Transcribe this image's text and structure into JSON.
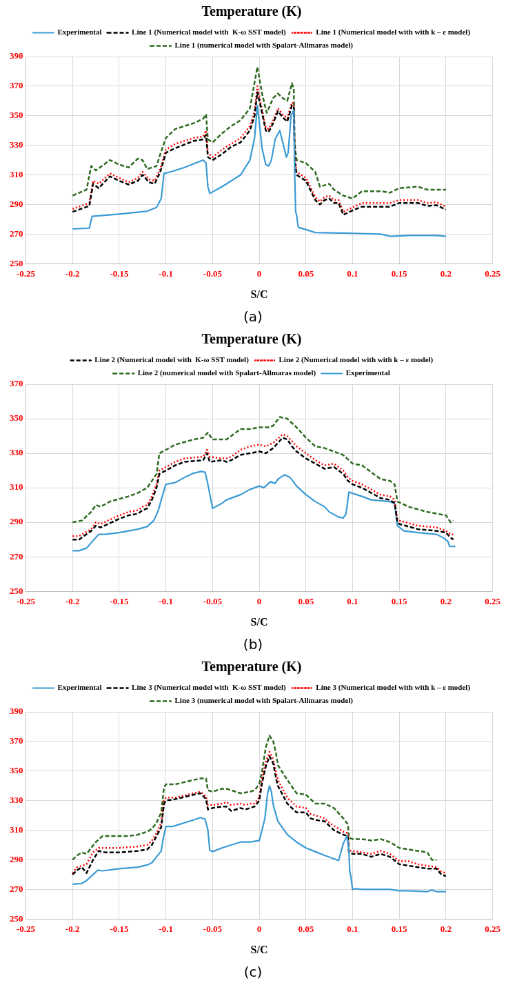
{
  "chart_data": [
    {
      "type": "line",
      "title": "Temperature (K)",
      "xlabel": "S/C",
      "annotations": [
        "(a)"
      ],
      "xlim": [
        -0.25,
        0.25
      ],
      "xticks": [
        -0.25,
        -0.2,
        -0.15,
        -0.1,
        -0.05,
        0,
        0.05,
        0.1,
        0.15,
        0.2,
        0.25
      ],
      "ylim": [
        250,
        390
      ],
      "yticks": [
        250,
        270,
        290,
        310,
        330,
        350,
        370,
        390
      ],
      "grid": true,
      "legend": "top",
      "marker": "none",
      "series": [
        {
          "name": "Experimental",
          "color": "#3a9bd5",
          "line_style": "solid",
          "x": [
            -0.2,
            -0.182,
            -0.179,
            -0.15,
            -0.12,
            -0.11,
            -0.105,
            -0.102,
            -0.095,
            -0.08,
            -0.06,
            -0.057,
            -0.055,
            -0.053,
            -0.04,
            -0.02,
            -0.01,
            -0.005,
            -0.002,
            0.001,
            0.003,
            0.007,
            0.01,
            0.013,
            0.017,
            0.022,
            0.026,
            0.029,
            0.031,
            0.034,
            0.037,
            0.038,
            0.039,
            0.04,
            0.041,
            0.042,
            0.05,
            0.06,
            0.1,
            0.13,
            0.14,
            0.16,
            0.19,
            0.2
          ],
          "values": [
            273.5,
            274,
            282,
            283.5,
            285.5,
            288,
            294,
            311,
            312,
            315,
            320,
            318,
            302,
            297.5,
            302,
            310,
            320,
            335,
            357,
            340,
            328,
            317,
            316,
            320,
            334,
            340,
            330,
            322,
            325,
            350,
            354,
            310,
            285,
            283,
            278,
            274.5,
            273,
            271,
            270.5,
            270,
            268.5,
            269,
            269,
            268.5
          ]
        },
        {
          "name": "Line 1 (Numerical model with  K-ω SST model)",
          "color": "#000000",
          "line_style": "dashed",
          "x": [
            -0.2,
            -0.182,
            -0.178,
            -0.172,
            -0.16,
            -0.15,
            -0.14,
            -0.13,
            -0.125,
            -0.118,
            -0.112,
            -0.106,
            -0.1,
            -0.09,
            -0.07,
            -0.06,
            -0.057,
            -0.055,
            -0.05,
            -0.04,
            -0.03,
            -0.02,
            -0.01,
            -0.005,
            -0.002,
            0.002,
            0.007,
            0.01,
            0.015,
            0.02,
            0.025,
            0.03,
            0.035,
            0.037,
            0.038,
            0.04,
            0.05,
            0.06,
            0.065,
            0.07,
            0.075,
            0.08,
            0.085,
            0.09,
            0.1,
            0.11,
            0.14,
            0.15,
            0.17,
            0.18,
            0.19,
            0.2
          ],
          "values": [
            285,
            289,
            304,
            301,
            309,
            306,
            303.5,
            306,
            310,
            305,
            304,
            312,
            325,
            328,
            333,
            334,
            337,
            322,
            320,
            324,
            329,
            332,
            340,
            350,
            366,
            355,
            340,
            339,
            345,
            353,
            349,
            346,
            357,
            356,
            320,
            310,
            306,
            293,
            290,
            293,
            294,
            291,
            291,
            283,
            286,
            288.5,
            288.5,
            291,
            291,
            289,
            289.5,
            286.5
          ]
        },
        {
          "name": "Line 1 (Numerical model with with k – ε model)",
          "color": "#ff0000",
          "line_style": "dotted",
          "x": [
            -0.2,
            -0.182,
            -0.178,
            -0.172,
            -0.16,
            -0.15,
            -0.14,
            -0.13,
            -0.125,
            -0.118,
            -0.112,
            -0.106,
            -0.1,
            -0.09,
            -0.07,
            -0.06,
            -0.057,
            -0.055,
            -0.05,
            -0.04,
            -0.03,
            -0.02,
            -0.01,
            -0.005,
            -0.002,
            0.002,
            0.007,
            0.01,
            0.015,
            0.02,
            0.025,
            0.03,
            0.035,
            0.037,
            0.038,
            0.04,
            0.05,
            0.06,
            0.065,
            0.07,
            0.075,
            0.08,
            0.085,
            0.09,
            0.1,
            0.11,
            0.14,
            0.15,
            0.17,
            0.18,
            0.19,
            0.2
          ],
          "values": [
            287,
            291,
            306,
            304,
            311,
            308,
            305,
            308,
            312,
            307,
            306,
            314,
            327,
            331,
            335,
            336,
            340,
            325,
            322,
            327,
            331,
            335,
            343,
            353,
            370,
            357,
            342,
            341,
            347,
            355,
            351,
            348,
            359,
            358,
            323,
            312,
            308,
            295,
            292,
            295,
            296,
            293,
            293,
            285,
            288,
            291,
            291,
            293,
            293,
            291,
            291.5,
            288.5
          ]
        },
        {
          "name": "Line 1 (numerical model with Spalart-Allmaras model)",
          "color": "#2d6a1f",
          "line_style": "dashed",
          "x": [
            -0.2,
            -0.185,
            -0.18,
            -0.175,
            -0.16,
            -0.15,
            -0.14,
            -0.13,
            -0.125,
            -0.12,
            -0.11,
            -0.106,
            -0.1,
            -0.09,
            -0.07,
            -0.06,
            -0.057,
            -0.055,
            -0.05,
            -0.04,
            -0.03,
            -0.02,
            -0.01,
            -0.002,
            0.003,
            0.008,
            0.015,
            0.02,
            0.025,
            0.03,
            0.035,
            0.037,
            0.038,
            0.04,
            0.05,
            0.06,
            0.065,
            0.075,
            0.08,
            0.09,
            0.1,
            0.11,
            0.13,
            0.14,
            0.15,
            0.17,
            0.18,
            0.2
          ],
          "values": [
            296,
            300,
            316,
            313,
            320,
            317,
            315,
            321,
            320,
            314,
            316,
            324,
            335,
            341,
            345,
            348,
            351,
            334,
            332,
            338,
            343,
            347,
            355,
            383,
            365,
            352,
            362,
            365,
            362,
            360,
            372,
            368,
            330,
            320,
            318,
            312,
            302,
            304,
            300,
            296,
            294,
            299,
            299,
            298,
            301,
            302,
            300,
            300
          ]
        }
      ]
    },
    {
      "type": "line",
      "title": "Temperature (K)",
      "xlabel": "S/C",
      "annotations": [
        "(b)"
      ],
      "xlim": [
        -0.25,
        0.25
      ],
      "xticks": [
        -0.25,
        -0.2,
        -0.15,
        -0.1,
        -0.05,
        0,
        0.05,
        0.1,
        0.15,
        0.2,
        0.25
      ],
      "ylim": [
        250,
        370
      ],
      "yticks": [
        250,
        270,
        290,
        310,
        330,
        350,
        370
      ],
      "grid": true,
      "legend": "top",
      "marker": "none",
      "series": [
        {
          "name": "Line 2 (Numerical model with  K-ω SST model)",
          "color": "#000000",
          "line_style": "dashed",
          "x": [
            -0.2,
            -0.193,
            -0.18,
            -0.175,
            -0.17,
            -0.15,
            -0.14,
            -0.13,
            -0.125,
            -0.12,
            -0.115,
            -0.11,
            -0.107,
            -0.1,
            -0.09,
            -0.08,
            -0.06,
            -0.056,
            -0.053,
            -0.04,
            -0.035,
            -0.03,
            -0.02,
            -0.01,
            0,
            0.007,
            0.015,
            0.025,
            0.03,
            0.035,
            0.04,
            0.05,
            0.06,
            0.07,
            0.08,
            0.09,
            0.095,
            0.1,
            0.11,
            0.12,
            0.13,
            0.14,
            0.145,
            0.148,
            0.15,
            0.17,
            0.19,
            0.2,
            0.205,
            0.208
          ],
          "values": [
            280,
            280,
            285,
            288,
            287,
            292,
            294,
            295,
            297,
            298,
            303,
            310,
            318,
            320,
            323,
            325,
            326,
            330,
            325,
            326,
            325,
            326,
            329,
            330,
            331,
            330,
            333,
            339,
            338,
            334,
            331,
            327,
            324,
            321,
            322,
            318,
            314,
            312,
            310,
            307,
            304,
            303,
            301,
            290,
            289,
            286,
            285,
            284,
            281,
            280
          ]
        },
        {
          "name": "Line 2 (Numerical model with with k – ε model)",
          "color": "#ff0000",
          "line_style": "dotted",
          "x": [
            -0.2,
            -0.193,
            -0.18,
            -0.175,
            -0.17,
            -0.15,
            -0.14,
            -0.13,
            -0.125,
            -0.12,
            -0.115,
            -0.11,
            -0.107,
            -0.1,
            -0.09,
            -0.08,
            -0.06,
            -0.056,
            -0.053,
            -0.04,
            -0.035,
            -0.03,
            -0.02,
            -0.01,
            0,
            0.007,
            0.015,
            0.025,
            0.03,
            0.035,
            0.04,
            0.05,
            0.06,
            0.07,
            0.08,
            0.09,
            0.095,
            0.1,
            0.11,
            0.12,
            0.13,
            0.14,
            0.145,
            0.148,
            0.15,
            0.17,
            0.19,
            0.2,
            0.205,
            0.208
          ],
          "values": [
            282,
            282,
            286,
            290,
            289,
            294,
            296,
            297,
            299,
            300,
            305,
            312,
            320,
            322,
            325,
            327,
            328,
            332,
            328,
            327,
            327,
            328,
            332,
            334,
            335,
            334,
            336,
            341,
            340,
            337,
            334,
            330,
            326,
            323,
            324,
            320,
            316,
            314,
            312,
            309,
            306,
            305,
            303,
            292,
            291,
            288,
            287,
            285,
            283,
            283
          ]
        },
        {
          "name": "Line 2 (numerical model with Spalart-Allmaras model)",
          "color": "#2d6a1f",
          "line_style": "dashed",
          "x": [
            -0.2,
            -0.19,
            -0.18,
            -0.175,
            -0.17,
            -0.16,
            -0.14,
            -0.13,
            -0.12,
            -0.115,
            -0.11,
            -0.107,
            -0.1,
            -0.09,
            -0.07,
            -0.06,
            -0.055,
            -0.05,
            -0.04,
            -0.035,
            -0.02,
            -0.01,
            0,
            0.01,
            0.015,
            0.022,
            0.03,
            0.04,
            0.05,
            0.06,
            0.07,
            0.09,
            0.1,
            0.11,
            0.12,
            0.13,
            0.14,
            0.145,
            0.148,
            0.16,
            0.18,
            0.2,
            0.205,
            0.208
          ],
          "values": [
            290,
            291,
            296,
            300,
            299,
            302,
            305,
            307,
            310,
            314,
            318,
            330,
            332,
            335,
            338,
            339,
            342,
            338,
            338,
            338,
            344,
            344,
            345,
            345,
            346,
            351,
            350,
            345,
            339,
            334,
            333,
            329,
            324,
            323,
            319,
            315,
            314,
            312,
            302,
            299,
            296,
            294,
            290,
            291
          ]
        },
        {
          "name": "Experimental",
          "color": "#3a9bd5",
          "line_style": "solid",
          "x": [
            -0.2,
            -0.193,
            -0.185,
            -0.177,
            -0.172,
            -0.165,
            -0.15,
            -0.13,
            -0.12,
            -0.113,
            -0.108,
            -0.105,
            -0.1,
            -0.09,
            -0.08,
            -0.07,
            -0.062,
            -0.058,
            -0.055,
            -0.05,
            -0.045,
            -0.04,
            -0.035,
            -0.02,
            -0.01,
            0,
            0.005,
            0.012,
            0.017,
            0.02,
            0.027,
            0.033,
            0.04,
            0.05,
            0.06,
            0.07,
            0.075,
            0.085,
            0.09,
            0.093,
            0.096,
            0.11,
            0.12,
            0.14,
            0.145,
            0.148,
            0.155,
            0.17,
            0.19,
            0.197,
            0.202,
            0.204,
            0.21
          ],
          "values": [
            273.5,
            273.5,
            275,
            280,
            283,
            283,
            284,
            286,
            287.5,
            291,
            297,
            303,
            312,
            313,
            316,
            318.5,
            319.5,
            319,
            312,
            298,
            299.5,
            301,
            303,
            306,
            309,
            311,
            310,
            313.5,
            312.5,
            315,
            317.5,
            316,
            311,
            306,
            302,
            299,
            296,
            293,
            292.5,
            295,
            307.5,
            305,
            303,
            302,
            301,
            288,
            285,
            284,
            283,
            281,
            279,
            276,
            276
          ]
        }
      ]
    },
    {
      "type": "line",
      "title": "Temperature (K)",
      "xlabel": "S/C",
      "annotations": [
        "(c)"
      ],
      "xlim": [
        -0.25,
        0.25
      ],
      "xticks": [
        -0.25,
        -0.2,
        -0.15,
        -0.1,
        -0.05,
        0,
        0.05,
        0.1,
        0.15,
        0.2,
        0.25
      ],
      "ylim": [
        250,
        390
      ],
      "yticks": [
        250,
        270,
        290,
        310,
        330,
        350,
        370,
        390
      ],
      "grid": true,
      "legend": "top",
      "marker": "none",
      "series": [
        {
          "name": "Experimental",
          "color": "#3a9bd5",
          "line_style": "solid",
          "x": [
            -0.2,
            -0.19,
            -0.185,
            -0.178,
            -0.173,
            -0.168,
            -0.15,
            -0.13,
            -0.12,
            -0.115,
            -0.11,
            -0.105,
            -0.103,
            -0.1,
            -0.093,
            -0.08,
            -0.07,
            -0.063,
            -0.058,
            -0.055,
            -0.053,
            -0.05,
            -0.04,
            -0.03,
            -0.02,
            -0.01,
            0,
            0.003,
            0.006,
            0.009,
            0.011,
            0.013,
            0.015,
            0.02,
            0.03,
            0.04,
            0.05,
            0.06,
            0.07,
            0.085,
            0.09,
            0.094,
            0.096,
            0.097,
            0.098,
            0.1,
            0.103,
            0.11,
            0.14,
            0.15,
            0.16,
            0.18,
            0.185,
            0.19,
            0.2
          ],
          "values": [
            273.5,
            274,
            276,
            280,
            283,
            282.5,
            284,
            285,
            286.5,
            288,
            292,
            296,
            304,
            312.5,
            312.5,
            315,
            317,
            318.5,
            317.5,
            310,
            296.5,
            295.5,
            298,
            300,
            302,
            302,
            303,
            310,
            318,
            335,
            340,
            336,
            327,
            316,
            307,
            302,
            298,
            295.5,
            293,
            289.5,
            301,
            306,
            296,
            282,
            279,
            270,
            270.5,
            270,
            270,
            269,
            269,
            268.5,
            269.5,
            268.5,
            268.5
          ]
        },
        {
          "name": "Line 3 (Numerical model with  K-ω SST model)",
          "color": "#000000",
          "line_style": "dashed",
          "x": [
            -0.2,
            -0.195,
            -0.19,
            -0.185,
            -0.178,
            -0.172,
            -0.165,
            -0.15,
            -0.13,
            -0.12,
            -0.115,
            -0.11,
            -0.105,
            -0.102,
            -0.1,
            -0.09,
            -0.07,
            -0.063,
            -0.057,
            -0.055,
            -0.05,
            -0.04,
            -0.035,
            -0.03,
            -0.02,
            -0.015,
            -0.01,
            -0.005,
            0,
            0.003,
            0.007,
            0.011,
            0.015,
            0.018,
            0.02,
            0.03,
            0.04,
            0.05,
            0.055,
            0.06,
            0.07,
            0.075,
            0.08,
            0.09,
            0.095,
            0.096,
            0.1,
            0.11,
            0.12,
            0.13,
            0.14,
            0.15,
            0.16,
            0.17,
            0.18,
            0.19,
            0.195,
            0.2
          ],
          "values": [
            280,
            283,
            285,
            281,
            290,
            296,
            295,
            295,
            296,
            297,
            300,
            306,
            312,
            328,
            330,
            331,
            334,
            335,
            331,
            324,
            325,
            326,
            326,
            323,
            325,
            324,
            325,
            326,
            330,
            342,
            353,
            360,
            355,
            345,
            340,
            328,
            322,
            322,
            318,
            317,
            316,
            313,
            310,
            307,
            306,
            295,
            294,
            294,
            292,
            294,
            292,
            287,
            286,
            285,
            284,
            284,
            280,
            279
          ]
        },
        {
          "name": "Line 3 (Numerical model with with k – ε model)",
          "color": "#ff0000",
          "line_style": "dotted",
          "x": [
            -0.2,
            -0.195,
            -0.19,
            -0.185,
            -0.178,
            -0.172,
            -0.165,
            -0.15,
            -0.13,
            -0.12,
            -0.115,
            -0.11,
            -0.105,
            -0.102,
            -0.1,
            -0.09,
            -0.07,
            -0.063,
            -0.057,
            -0.055,
            -0.05,
            -0.04,
            -0.035,
            -0.03,
            -0.02,
            -0.015,
            -0.01,
            -0.005,
            0,
            0.003,
            0.007,
            0.011,
            0.015,
            0.018,
            0.02,
            0.03,
            0.04,
            0.05,
            0.055,
            0.06,
            0.07,
            0.075,
            0.08,
            0.09,
            0.095,
            0.096,
            0.1,
            0.11,
            0.12,
            0.13,
            0.14,
            0.15,
            0.16,
            0.17,
            0.18,
            0.19,
            0.195,
            0.2
          ],
          "values": [
            281,
            285,
            286,
            287,
            295,
            298,
            298,
            298,
            299,
            300,
            303,
            308,
            315,
            330,
            332,
            332,
            335,
            336,
            333,
            327,
            327,
            328,
            329,
            327,
            328,
            327,
            328,
            328,
            332,
            345,
            356,
            363,
            358,
            349,
            344,
            332,
            326,
            325,
            321,
            320,
            318,
            315,
            313,
            309,
            308,
            296,
            296,
            295,
            294,
            296,
            294,
            289,
            289,
            287,
            286,
            285,
            282,
            281
          ]
        },
        {
          "name": "Line 3 (numerical model with Spalart-Allmaras model)",
          "color": "#2d6a1f",
          "line_style": "dashed",
          "x": [
            -0.2,
            -0.195,
            -0.19,
            -0.185,
            -0.175,
            -0.168,
            -0.16,
            -0.14,
            -0.13,
            -0.12,
            -0.115,
            -0.11,
            -0.105,
            -0.102,
            -0.1,
            -0.09,
            -0.07,
            -0.063,
            -0.057,
            -0.055,
            -0.05,
            -0.04,
            -0.035,
            -0.03,
            -0.02,
            -0.01,
            -0.005,
            0,
            0.003,
            0.007,
            0.011,
            0.015,
            0.018,
            0.02,
            0.03,
            0.04,
            0.05,
            0.06,
            0.07,
            0.08,
            0.09,
            0.095,
            0.096,
            0.1,
            0.11,
            0.12,
            0.13,
            0.14,
            0.15,
            0.16,
            0.17,
            0.18,
            0.185,
            0.19
          ],
          "values": [
            290,
            293,
            295,
            294,
            302,
            306,
            306,
            306,
            307,
            309,
            311,
            315,
            322,
            339,
            341,
            341,
            344,
            345,
            345,
            337,
            336,
            338,
            338,
            337,
            335,
            336,
            337,
            341,
            350,
            366,
            374,
            370,
            362,
            354,
            344,
            335,
            334,
            328,
            328,
            325,
            318,
            314,
            305,
            304,
            304,
            303,
            304,
            302,
            298,
            297,
            296,
            295,
            290,
            290
          ]
        }
      ]
    }
  ]
}
